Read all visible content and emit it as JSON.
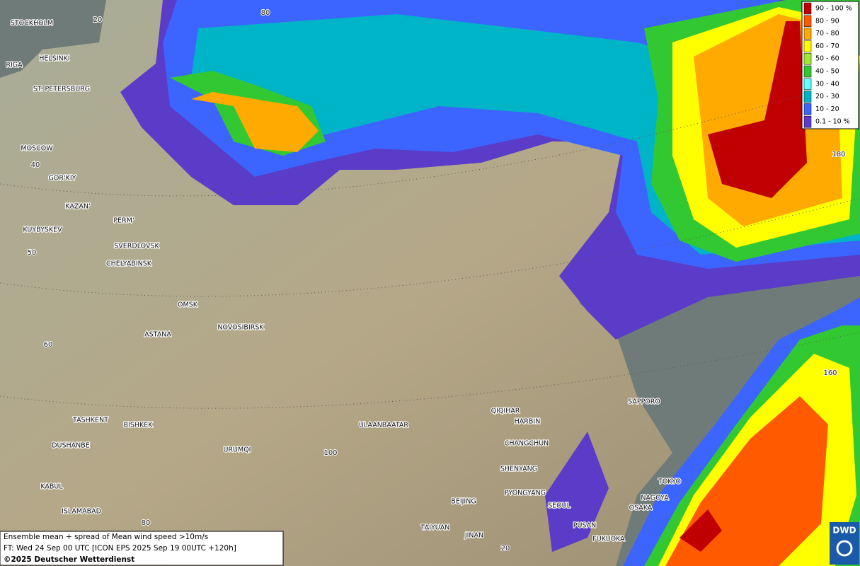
{
  "legend": [
    {
      "label": "90 - 100 %",
      "color": "#c00000"
    },
    {
      "label": "80 - 90",
      "color": "#ff5a00"
    },
    {
      "label": "70 - 80",
      "color": "#ffaa00"
    },
    {
      "label": "60 - 70",
      "color": "#ffff00"
    },
    {
      "label": "50 - 60",
      "color": "#a0e632"
    },
    {
      "label": "40 - 50",
      "color": "#32c832"
    },
    {
      "label": "30 - 40",
      "color": "#64ffff"
    },
    {
      "label": "20 - 30",
      "color": "#00b4c8"
    },
    {
      "label": "10 - 20",
      "color": "#3c64ff"
    },
    {
      "label": "0.1 - 10 %",
      "color": "#5a3cc8"
    }
  ],
  "cities": [
    "STOCKHOLM",
    "HELSINKI",
    "RIGA",
    "ST. PETERSBURG",
    "MOSCOW",
    "GOR'KIY",
    "KAZAN'",
    "PERM'",
    "KUYBYSKEV",
    "SVERDLOVSK",
    "CHELYABINSK",
    "OMSK",
    "NOVOSIBIRSK",
    "ASTANA",
    "TASHKENT",
    "BISHKEK",
    "DUSHANBE",
    "URUMQI",
    "ULAANBAATAR",
    "QIQIHAR",
    "HARBIN",
    "CHANGCHUN",
    "SHENYANG",
    "PYONGYANG",
    "SEOUL",
    "BEIJING",
    "TAIYUAN",
    "JINAN",
    "PUSAN",
    "FUKUOKA",
    "SAPPORO",
    "TOKYO",
    "NAGOYA",
    "OSAKA",
    "KABUL",
    "ISLAMABAD"
  ],
  "graticule_labels": [
    "20",
    "80",
    "40",
    "50",
    "60",
    "100",
    "80",
    "180",
    "160",
    "20"
  ],
  "info": {
    "line1": "Ensemble mean + spread of Mean wind speed >10m/s",
    "line2": "FT: Wed 24 Sep 00 UTC [ICON EPS 2025 Sep 19 00UTC +120h]",
    "line3": "©2025 Deutscher Wetterdienst"
  },
  "logo": "DWD"
}
